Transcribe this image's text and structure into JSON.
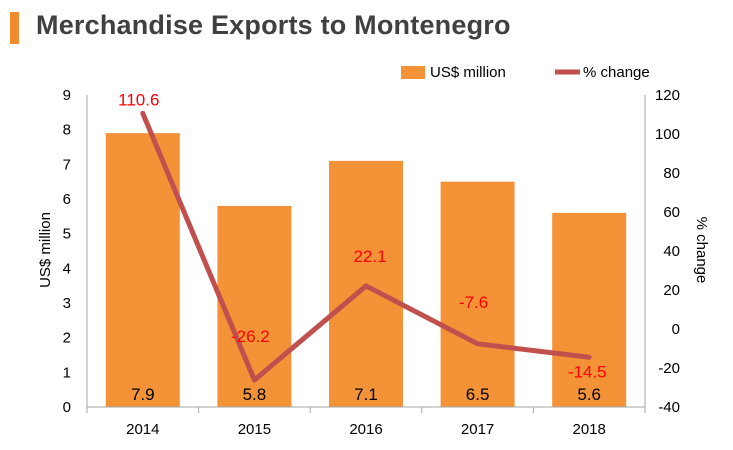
{
  "header": {
    "title": "Merchandise Exports to Montenegro"
  },
  "colors": {
    "accent": "#F18C2E",
    "bar": "#F39237",
    "line": "#C0504D",
    "line_label": "#FF0000",
    "axis": "#A6A6A6"
  },
  "chart_data": {
    "type": "bar",
    "title": "Merchandise Exports to Montenegro",
    "categories": [
      "2014",
      "2015",
      "2016",
      "2017",
      "2018"
    ],
    "series": [
      {
        "name": "US$ million",
        "type": "bar",
        "axis": "left",
        "values": [
          7.9,
          5.8,
          7.1,
          6.5,
          5.6
        ],
        "labels": [
          "7.9",
          "5.8",
          "7.1",
          "6.5",
          "5.6"
        ]
      },
      {
        "name": "% change",
        "type": "line",
        "axis": "right",
        "values": [
          110.6,
          -26.2,
          22.1,
          -7.6,
          -14.5
        ],
        "labels": [
          "110.6",
          "-26.2",
          "22.1",
          "-7.6",
          "-14.5"
        ]
      }
    ],
    "ylabel": "US$ million",
    "ylabel_right": "% change",
    "ylim": [
      0,
      9
    ],
    "ylim_right": [
      -40,
      120
    ],
    "yticks": [
      "0",
      "1",
      "2",
      "3",
      "4",
      "5",
      "6",
      "7",
      "8",
      "9"
    ],
    "yticks_right": [
      "-40",
      "-20",
      "0",
      "20",
      "40",
      "60",
      "80",
      "100",
      "120"
    ],
    "legend": [
      "US$ million",
      "% change"
    ],
    "legend_position": "top-right",
    "grid": false
  }
}
